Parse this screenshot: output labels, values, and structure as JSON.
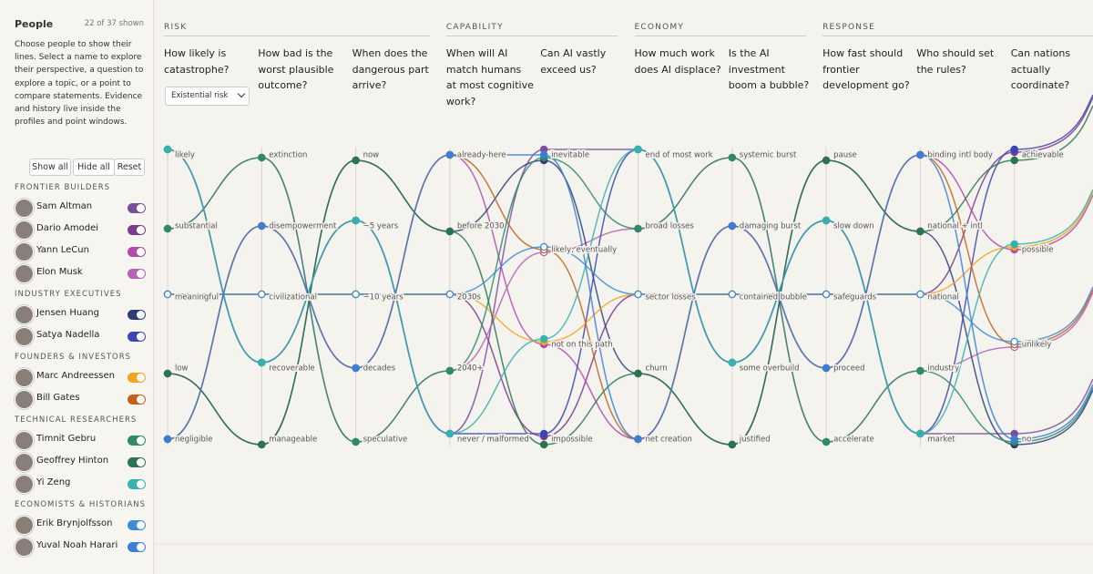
{
  "sidebar": {
    "title": "People",
    "count": "22 of 37 shown",
    "description": "Choose people to show their lines. Select a name to explore their perspective, a question to explore a topic, or a point to compare statements. Evidence and history live inside the profiles and point windows.",
    "buttons": [
      "Show all",
      "Hide all",
      "Reset"
    ],
    "groups": [
      {
        "name": "FRONTIER BUILDERS",
        "people": [
          {
            "name": "Sam Altman",
            "color": "#7a4e9e"
          },
          {
            "name": "Dario Amodei",
            "color": "#7b3a8c"
          },
          {
            "name": "Yann LeCun",
            "color": "#b04aae"
          },
          {
            "name": "Elon Musk",
            "color": "#b862b6"
          }
        ]
      },
      {
        "name": "INDUSTRY EXECUTIVES",
        "people": [
          {
            "name": "Jensen Huang",
            "color": "#2e3d78"
          },
          {
            "name": "Satya Nadella",
            "color": "#3b46b2"
          }
        ]
      },
      {
        "name": "FOUNDERS & INVESTORS",
        "people": [
          {
            "name": "Marc Andreessen",
            "color": "#f2a41f"
          },
          {
            "name": "Bill Gates",
            "color": "#c2621a"
          }
        ]
      },
      {
        "name": "TECHNICAL RESEARCHERS",
        "people": [
          {
            "name": "Timnit Gebru",
            "color": "#2c8a68"
          },
          {
            "name": "Geoffrey Hinton",
            "color": "#2b7452"
          },
          {
            "name": "Yi Zeng",
            "color": "#35b2ae"
          }
        ]
      },
      {
        "name": "ECONOMISTS & HISTORIANS",
        "people": [
          {
            "name": "Erik Brynjolfsson",
            "color": "#3a8cd4"
          },
          {
            "name": "Yuval Noah Harari",
            "color": "#3c7fd2"
          }
        ]
      }
    ]
  },
  "main": {
    "select": "Existential risk",
    "sections": [
      {
        "name": "RISK",
        "questions": [
          {
            "text": "How likely is catastrophe?",
            "options": [
              "likely",
              "substantial",
              "meaningful",
              "low",
              "negligible"
            ]
          },
          {
            "text": "How bad is the worst plausible outcome?",
            "options": [
              "extinction",
              "disempowerment",
              "civilizational",
              "recoverable",
              "manageable"
            ]
          },
          {
            "text": "When does the dangerous part arrive?",
            "options": [
              "now",
              "~5 years",
              "~10 years",
              "decades",
              "speculative"
            ]
          }
        ]
      },
      {
        "name": "CAPABILITY",
        "questions": [
          {
            "text": "When will AI match humans at most cognitive work?",
            "options": [
              "already here",
              "before 2030",
              "2030s",
              "2040+",
              "never / malformed"
            ]
          },
          {
            "text": "Can AI vastly exceed us?",
            "options": [
              "inevitable",
              "likely, eventually",
              "not on this path",
              "impossible"
            ]
          }
        ]
      },
      {
        "name": "ECONOMY",
        "questions": [
          {
            "text": "How much work does AI displace?",
            "options": [
              "end of most work",
              "broad losses",
              "sector losses",
              "churn",
              "net creation"
            ]
          },
          {
            "text": "Is the AI investment boom a bubble?",
            "options": [
              "systemic burst",
              "damaging burst",
              "contained bubble",
              "some overbuild",
              "justified"
            ]
          }
        ]
      },
      {
        "name": "RESPONSE",
        "questions": [
          {
            "text": "How fast should frontier development go?",
            "options": [
              "pause",
              "slow down",
              "safeguards",
              "proceed",
              "accelerate"
            ]
          },
          {
            "text": "Who should set the rules?",
            "options": [
              "binding intl body",
              "national + intl",
              "national",
              "industry",
              "market"
            ]
          },
          {
            "text": "Can nations actually coordinate?",
            "options": [
              "achievable",
              "possible",
              "unlikely",
              "no"
            ]
          }
        ]
      }
    ]
  }
}
